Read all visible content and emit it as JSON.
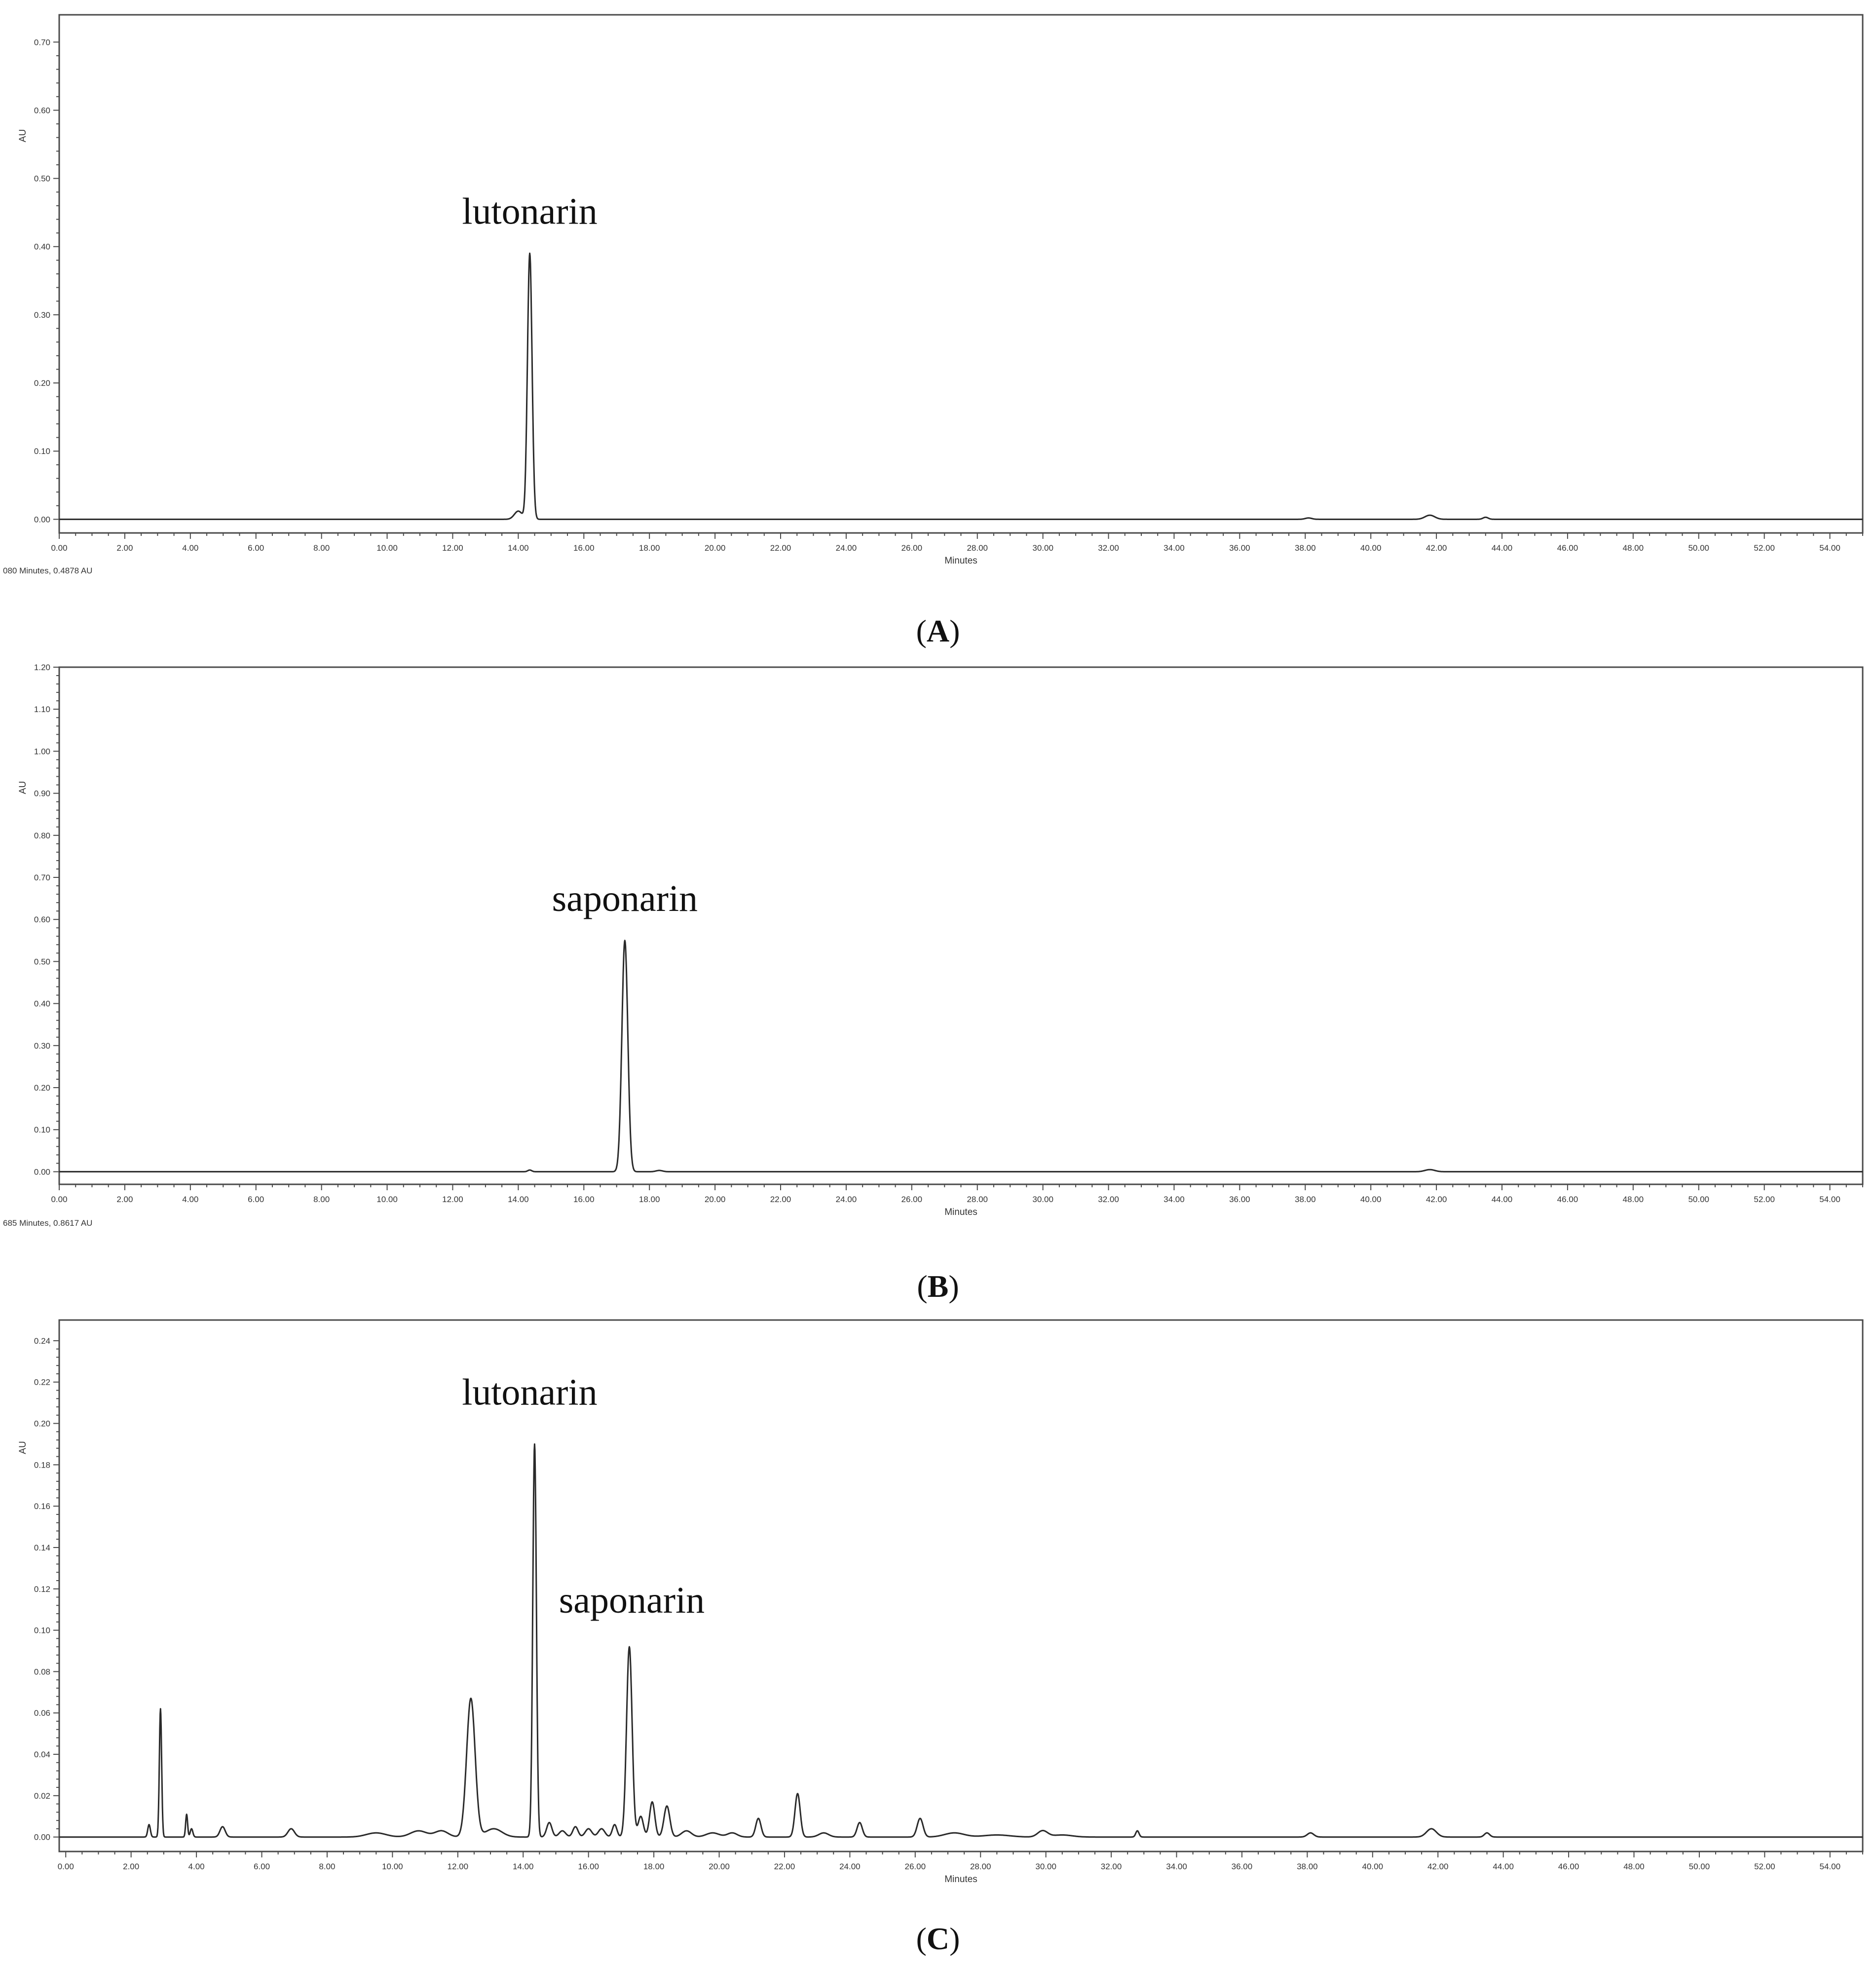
{
  "chart_data": [
    {
      "type": "line",
      "panel": "A",
      "caption_open": "(",
      "caption_letter": "A",
      "caption_close": ")",
      "xlabel": "Minutes",
      "ylabel": "AU",
      "xlim": [
        0,
        55
      ],
      "ylim": [
        -0.02,
        0.74
      ],
      "x_ticks": [
        "0.00",
        "2.00",
        "4.00",
        "6.00",
        "8.00",
        "10.00",
        "12.00",
        "14.00",
        "16.00",
        "18.00",
        "20.00",
        "22.00",
        "24.00",
        "26.00",
        "28.00",
        "30.00",
        "32.00",
        "34.00",
        "36.00",
        "38.00",
        "40.00",
        "42.00",
        "44.00",
        "46.00",
        "48.00",
        "50.00",
        "52.00",
        "54.00"
      ],
      "y_ticks": [
        "0.00",
        "0.10",
        "0.20",
        "0.30",
        "0.40",
        "0.50",
        "0.60",
        "0.70"
      ],
      "cursor_readout": "080 Minutes, 0.4878 AU",
      "annotations": [
        {
          "text": "lutonarin",
          "x": 14.35,
          "y": 0.39
        }
      ],
      "peaks": [
        {
          "x": 14.35,
          "y": 0.39,
          "w": 0.07
        },
        {
          "x": 14.0,
          "y": 0.012,
          "w": 0.12
        },
        {
          "x": 38.1,
          "y": 0.002,
          "w": 0.1
        },
        {
          "x": 41.8,
          "y": 0.006,
          "w": 0.15
        },
        {
          "x": 43.5,
          "y": 0.003,
          "w": 0.08
        }
      ]
    },
    {
      "type": "line",
      "panel": "B",
      "caption_open": "(",
      "caption_letter": "B",
      "caption_close": ")",
      "xlabel": "Minutes",
      "ylabel": "AU",
      "xlim": [
        0,
        55
      ],
      "ylim": [
        -0.03,
        1.2
      ],
      "x_ticks": [
        "0.00",
        "2.00",
        "4.00",
        "6.00",
        "8.00",
        "10.00",
        "12.00",
        "14.00",
        "16.00",
        "18.00",
        "20.00",
        "22.00",
        "24.00",
        "26.00",
        "28.00",
        "30.00",
        "32.00",
        "34.00",
        "36.00",
        "38.00",
        "40.00",
        "42.00",
        "44.00",
        "46.00",
        "48.00",
        "50.00",
        "52.00",
        "54.00"
      ],
      "y_ticks": [
        "0.00",
        "0.10",
        "0.20",
        "0.30",
        "0.40",
        "0.50",
        "0.60",
        "0.70",
        "0.80",
        "0.90",
        "1.00",
        "1.10",
        "1.20"
      ],
      "cursor_readout": "685 Minutes, 0.8617 AU",
      "annotations": [
        {
          "text": "saponarin",
          "x": 17.25,
          "y": 0.55
        }
      ],
      "peaks": [
        {
          "x": 17.25,
          "y": 0.55,
          "w": 0.09
        },
        {
          "x": 14.35,
          "y": 0.004,
          "w": 0.06
        },
        {
          "x": 18.3,
          "y": 0.003,
          "w": 0.1
        },
        {
          "x": 41.8,
          "y": 0.005,
          "w": 0.15
        }
      ]
    },
    {
      "type": "line",
      "panel": "C",
      "caption_open": "(",
      "caption_letter": "C",
      "caption_close": ")",
      "xlabel": "Minutes",
      "ylabel": "AU",
      "xlim": [
        -0.2,
        55
      ],
      "ylim": [
        -0.007,
        0.25
      ],
      "x_ticks": [
        "0.00",
        "2.00",
        "4.00",
        "6.00",
        "8.00",
        "10.00",
        "12.00",
        "14.00",
        "16.00",
        "18.00",
        "20.00",
        "22.00",
        "24.00",
        "26.00",
        "28.00",
        "30.00",
        "32.00",
        "34.00",
        "36.00",
        "38.00",
        "40.00",
        "42.00",
        "44.00",
        "46.00",
        "48.00",
        "50.00",
        "52.00",
        "54.00"
      ],
      "y_ticks": [
        "0.00",
        "0.02",
        "0.04",
        "0.06",
        "0.08",
        "0.10",
        "0.12",
        "0.14",
        "0.16",
        "0.18",
        "0.20",
        "0.22",
        "0.24"
      ],
      "cursor_readout": "",
      "annotations": [
        {
          "text": "lutonarin",
          "x": 14.35,
          "y": 0.19
        },
        {
          "text": "saponarin",
          "x": 17.25,
          "y": 0.093
        }
      ],
      "peaks": [
        {
          "x": 2.55,
          "y": 0.006,
          "w": 0.04
        },
        {
          "x": 2.9,
          "y": 0.062,
          "w": 0.035
        },
        {
          "x": 3.7,
          "y": 0.011,
          "w": 0.03
        },
        {
          "x": 3.85,
          "y": 0.004,
          "w": 0.04
        },
        {
          "x": 4.8,
          "y": 0.005,
          "w": 0.08
        },
        {
          "x": 6.9,
          "y": 0.004,
          "w": 0.1
        },
        {
          "x": 9.5,
          "y": 0.002,
          "w": 0.3
        },
        {
          "x": 10.8,
          "y": 0.003,
          "w": 0.25
        },
        {
          "x": 11.5,
          "y": 0.003,
          "w": 0.2
        },
        {
          "x": 12.4,
          "y": 0.067,
          "w": 0.13
        },
        {
          "x": 13.1,
          "y": 0.004,
          "w": 0.25
        },
        {
          "x": 14.35,
          "y": 0.19,
          "w": 0.055
        },
        {
          "x": 14.8,
          "y": 0.007,
          "w": 0.08
        },
        {
          "x": 15.2,
          "y": 0.003,
          "w": 0.1
        },
        {
          "x": 15.6,
          "y": 0.005,
          "w": 0.08
        },
        {
          "x": 16.0,
          "y": 0.004,
          "w": 0.1
        },
        {
          "x": 16.4,
          "y": 0.004,
          "w": 0.1
        },
        {
          "x": 16.8,
          "y": 0.006,
          "w": 0.07
        },
        {
          "x": 17.25,
          "y": 0.092,
          "w": 0.085
        },
        {
          "x": 17.6,
          "y": 0.01,
          "w": 0.08
        },
        {
          "x": 17.95,
          "y": 0.017,
          "w": 0.08
        },
        {
          "x": 18.4,
          "y": 0.015,
          "w": 0.09
        },
        {
          "x": 19.0,
          "y": 0.003,
          "w": 0.15
        },
        {
          "x": 19.8,
          "y": 0.002,
          "w": 0.2
        },
        {
          "x": 20.4,
          "y": 0.002,
          "w": 0.15
        },
        {
          "x": 21.2,
          "y": 0.009,
          "w": 0.08
        },
        {
          "x": 22.4,
          "y": 0.021,
          "w": 0.08
        },
        {
          "x": 23.2,
          "y": 0.002,
          "w": 0.15
        },
        {
          "x": 24.3,
          "y": 0.007,
          "w": 0.08
        },
        {
          "x": 26.15,
          "y": 0.009,
          "w": 0.09
        },
        {
          "x": 27.2,
          "y": 0.002,
          "w": 0.3
        },
        {
          "x": 28.5,
          "y": 0.001,
          "w": 0.4
        },
        {
          "x": 29.9,
          "y": 0.003,
          "w": 0.15
        },
        {
          "x": 30.5,
          "y": 0.001,
          "w": 0.3
        },
        {
          "x": 32.8,
          "y": 0.003,
          "w": 0.05
        },
        {
          "x": 38.1,
          "y": 0.002,
          "w": 0.1
        },
        {
          "x": 41.8,
          "y": 0.004,
          "w": 0.15
        },
        {
          "x": 43.5,
          "y": 0.002,
          "w": 0.08
        }
      ]
    }
  ]
}
